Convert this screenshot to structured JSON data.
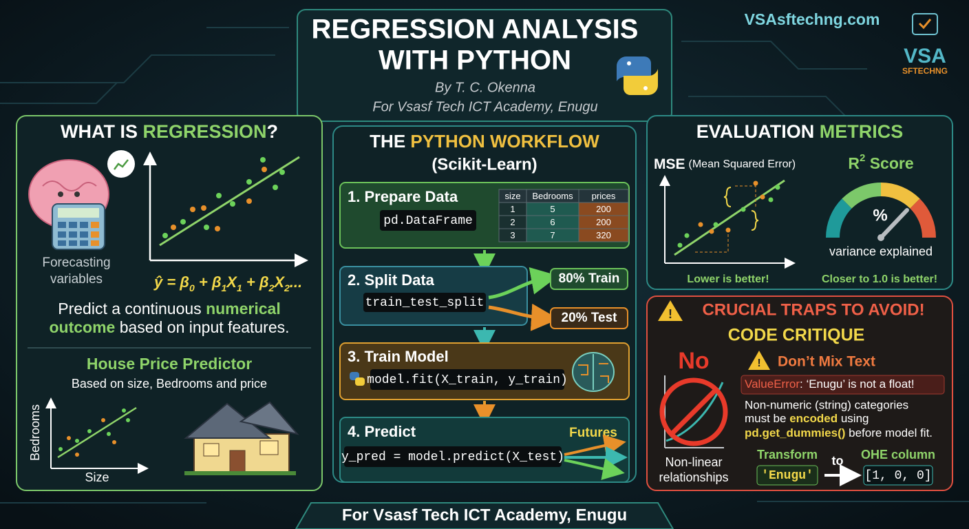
{
  "header": {
    "title_line1": "REGRESSION ANALYSIS",
    "title_line2": "WITH PYTHON",
    "author": "By T. C. Okenna",
    "org": "For Vsasf Tech ICT Academy, Enugu"
  },
  "brand": {
    "site": "VSAsftechng.com",
    "logo_main": "VSA",
    "logo_sub": "SFTECHNG"
  },
  "what_is": {
    "title_a": "WHAT IS ",
    "title_b": "REGRESSION",
    "title_c": "?",
    "icon_caption": [
      "Forecasting",
      "variables"
    ],
    "equation": [
      "ŷ = β",
      "0",
      " + β",
      "1",
      "X",
      "1",
      " + β",
      "2",
      "X",
      "2",
      "..."
    ],
    "description": {
      "line1_a": "Predict a continuous ",
      "line1_b": "numerical",
      "line2_a": "outcome",
      "line2_b": " based on input features."
    },
    "example_title": "House Price Predictor",
    "example_caption": "Based on size, Bedrooms and price",
    "x_label": "Size",
    "y_label": "Bedrooms"
  },
  "workflow": {
    "title_a": "THE ",
    "title_b": "PYTHON WORKFLOW",
    "subtitle": "(Scikit-Learn)",
    "steps": [
      {
        "title": "1. Prepare Data",
        "code": "pd.DataFrame"
      },
      {
        "title": "2. Split Data",
        "code": "train_test_split"
      },
      {
        "title": "3. Train Model",
        "code": "model.fit(X_train, y_train)"
      },
      {
        "title": "4. Predict",
        "code": "y_pred = model.predict(X_test)"
      }
    ],
    "table": {
      "columns": [
        "size",
        "Bedrooms",
        "prices"
      ],
      "rows": [
        [
          1,
          5,
          200
        ],
        [
          2,
          6,
          200
        ],
        [
          3,
          7,
          320
        ]
      ]
    },
    "split_train": "80% Train",
    "split_test": "20% Test",
    "futures": "Futures"
  },
  "metrics": {
    "title_a": "EVALUATION ",
    "title_b": "METRICS",
    "mse_title": "MSE",
    "mse_subtitle": "(Mean Squared Error)",
    "mse_note": "Lower is better!",
    "r2_title_a": "R",
    "r2_title_sup": "2",
    "r2_title_b": " Score",
    "gauge_symbol": "%",
    "gauge_caption": "variance explained",
    "r2_note": "Closer to 1.0 is better!"
  },
  "traps": {
    "title": "CRUCIAL TRAPS TO AVOID!",
    "subtitle": "CODE CRITIQUE",
    "no": "No",
    "nonlinear": [
      "Non-linear",
      "relationships"
    ],
    "warning": "Don’t Mix Text",
    "error_name": "ValueError",
    "error_message": ": ‘Enugu’ is not a float!",
    "description": {
      "line1": "Non-numeric (string) categories",
      "line2_a": "must be ",
      "line2_b": "encoded",
      "line2_c": " using",
      "line3_a": "pd.get_dummies()",
      "line3_b": " before model fit."
    },
    "transform_label": "Transform",
    "to": "to",
    "ohe_label": "OHE column",
    "input": "'Enugu'",
    "output": "[1, 0, 0]"
  },
  "footer": "For Vsasf Tech ICT Academy, Enugu"
}
